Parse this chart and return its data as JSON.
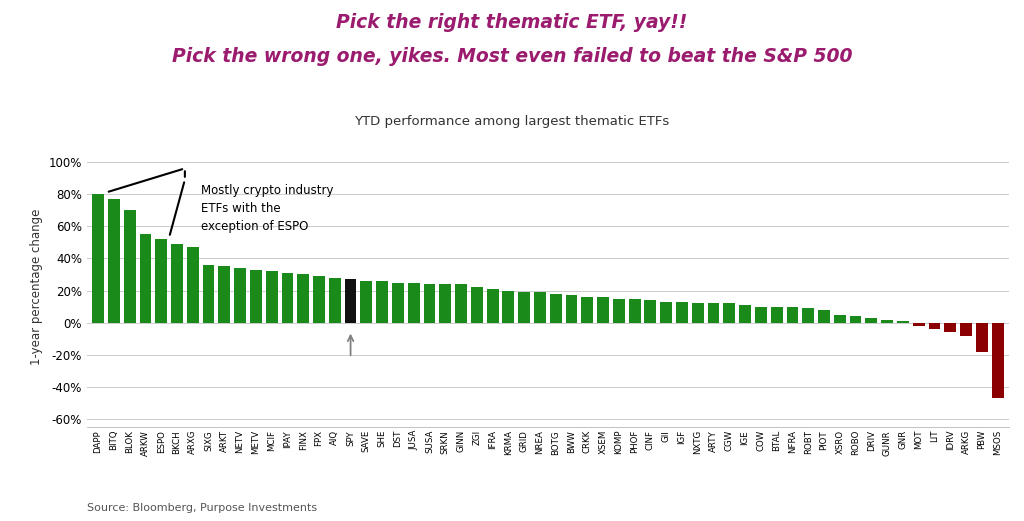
{
  "title_line1": "Pick the right thematic ETF, yay!!",
  "title_line2": "Pick the wrong one, yikes. Most even failed to beat the S&P 500",
  "subtitle": "YTD performance among largest thematic ETFs",
  "ylabel": "1-year percentage change",
  "source": "Source: Bloomberg, Purpose Investments",
  "title_color": "#9B1B6E",
  "subtitle_color": "#333333",
  "annotation_text": "Mostly crypto industry\nETFs with the\nexception of ESPO",
  "tickers": [
    "DAPP",
    "BITQ",
    "BLOK",
    "ARKW",
    "ESPO",
    "BKCH",
    "ARXG",
    "SIXG",
    "ARKT",
    "NETV",
    "METV",
    "MCIF",
    "IPAY",
    "FINX",
    "FPX",
    "AIQ",
    "SPY",
    "SAVE",
    "SHE",
    "DST",
    "JUSA",
    "SUSA",
    "SRKN",
    "GINN",
    "ZGI",
    "IFRA",
    "KRMA",
    "GRID",
    "NREA",
    "BOTG",
    "BWW",
    "CRKK",
    "XSEM",
    "KOMP",
    "PHOF",
    "CINF",
    "GII",
    "IGF",
    "NXTG",
    "ARTY",
    "CGW",
    "IGE",
    "COW",
    "BTAL",
    "NFRA",
    "ROBT",
    "PIOT",
    "XSRO",
    "ROBO",
    "DRIV",
    "GUNR",
    "GNR",
    "MOT",
    "LIT",
    "IDRV",
    "ARKG",
    "PBW",
    "MSOS"
  ],
  "values": [
    80,
    77,
    70,
    55,
    52,
    49,
    47,
    36,
    35,
    34,
    33,
    32,
    31,
    30,
    29,
    28,
    27,
    26,
    26,
    25,
    25,
    24,
    24,
    24,
    22,
    21,
    20,
    19,
    19,
    18,
    17,
    16,
    16,
    15,
    15,
    14,
    13,
    13,
    12,
    12,
    12,
    11,
    10,
    10,
    10,
    9,
    8,
    5,
    4,
    3,
    2,
    1,
    -2,
    -4,
    -6,
    -8,
    -18,
    -47
  ],
  "spy_index": 16,
  "green_color": "#1A8A1A",
  "red_color": "#8B0000",
  "spy_color": "#111111",
  "background_color": "#FFFFFF",
  "ylim": [
    -65,
    110
  ],
  "yticks": [
    -60,
    -40,
    -20,
    0,
    20,
    40,
    60,
    80,
    100
  ]
}
